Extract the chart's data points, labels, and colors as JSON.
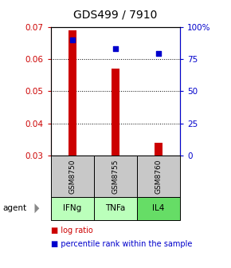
{
  "title": "GDS499 / 7910",
  "samples": [
    "GSM8750",
    "GSM8755",
    "GSM8760"
  ],
  "agents": [
    "IFNg",
    "TNFa",
    "IL4"
  ],
  "log_ratio": [
    0.069,
    0.057,
    0.034
  ],
  "log_ratio_base": 0.03,
  "percentile_rank": [
    90,
    83,
    79
  ],
  "ylim_left": [
    0.03,
    0.07
  ],
  "ylim_right": [
    0,
    100
  ],
  "yticks_left": [
    0.03,
    0.04,
    0.05,
    0.06,
    0.07
  ],
  "yticks_right": [
    0,
    25,
    50,
    75,
    100
  ],
  "bar_color": "#cc0000",
  "dot_color": "#0000cc",
  "bar_width": 0.18,
  "sample_bg": "#c8c8c8",
  "agent_colors": [
    "#bbffbb",
    "#bbffbb",
    "#66dd66"
  ],
  "title_fontsize": 10,
  "tick_fontsize": 7.5,
  "label_fontsize": 8,
  "legend_fontsize": 7,
  "left_tick_color": "#cc0000",
  "right_tick_color": "#0000cc"
}
